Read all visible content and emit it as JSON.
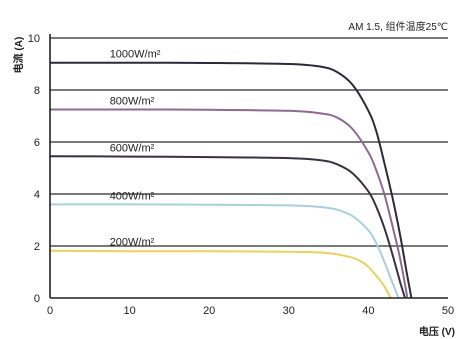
{
  "chart_data": {
    "type": "line",
    "annotation": "AM 1.5, 组件温度25℃",
    "xlabel": "电压 (V)",
    "ylabel": "电流 (A)",
    "xlim": [
      0,
      50
    ],
    "ylim": [
      0,
      10
    ],
    "xticks": [
      0,
      10,
      20,
      30,
      40,
      50
    ],
    "yticks": [
      0,
      2,
      4,
      6,
      8,
      10
    ],
    "grid": "horizontal",
    "series": [
      {
        "name": "1000W/m²",
        "color": "#2a2a3a",
        "points": [
          [
            0,
            9.05
          ],
          [
            10,
            9.05
          ],
          [
            20,
            9.04
          ],
          [
            30,
            9.0
          ],
          [
            34,
            8.9
          ],
          [
            36,
            8.7
          ],
          [
            38,
            8.2
          ],
          [
            40,
            7.2
          ],
          [
            41,
            6.4
          ],
          [
            42,
            5.2
          ],
          [
            43,
            3.9
          ],
          [
            44,
            2.4
          ],
          [
            44.8,
            1.0
          ],
          [
            45.4,
            0
          ]
        ]
      },
      {
        "name": "800W/m²",
        "color": "#8e6b8e",
        "points": [
          [
            0,
            7.25
          ],
          [
            10,
            7.25
          ],
          [
            20,
            7.24
          ],
          [
            30,
            7.2
          ],
          [
            34,
            7.1
          ],
          [
            36,
            6.95
          ],
          [
            38,
            6.5
          ],
          [
            40,
            5.6
          ],
          [
            41,
            4.9
          ],
          [
            42,
            4.0
          ],
          [
            43,
            2.8
          ],
          [
            44,
            1.5
          ],
          [
            44.9,
            0
          ]
        ]
      },
      {
        "name": "600W/m²",
        "color": "#3a3140",
        "points": [
          [
            0,
            5.45
          ],
          [
            10,
            5.44
          ],
          [
            20,
            5.42
          ],
          [
            30,
            5.38
          ],
          [
            34,
            5.3
          ],
          [
            36,
            5.15
          ],
          [
            38,
            4.8
          ],
          [
            40,
            4.1
          ],
          [
            41,
            3.5
          ],
          [
            42,
            2.7
          ],
          [
            43,
            1.7
          ],
          [
            44,
            0.6
          ],
          [
            44.6,
            0
          ]
        ]
      },
      {
        "name": "400W/m²",
        "color": "#a8d0da",
        "points": [
          [
            0,
            3.6
          ],
          [
            10,
            3.6
          ],
          [
            20,
            3.59
          ],
          [
            30,
            3.56
          ],
          [
            34,
            3.5
          ],
          [
            36,
            3.4
          ],
          [
            38,
            3.15
          ],
          [
            40,
            2.6
          ],
          [
            41,
            2.1
          ],
          [
            42,
            1.4
          ],
          [
            43,
            0.6
          ],
          [
            43.8,
            0
          ]
        ]
      },
      {
        "name": "200W/m²",
        "color": "#e8d35a",
        "points": [
          [
            0,
            1.82
          ],
          [
            10,
            1.8
          ],
          [
            20,
            1.8
          ],
          [
            30,
            1.78
          ],
          [
            34,
            1.75
          ],
          [
            36,
            1.68
          ],
          [
            38,
            1.55
          ],
          [
            39,
            1.42
          ],
          [
            40,
            1.2
          ],
          [
            41,
            0.85
          ],
          [
            42,
            0.45
          ],
          [
            42.8,
            0
          ]
        ]
      }
    ]
  }
}
